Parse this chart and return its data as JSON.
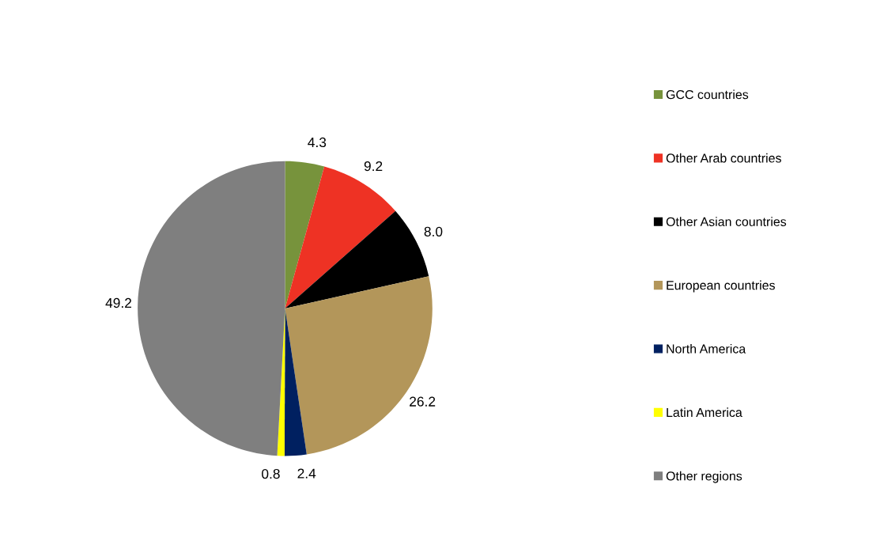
{
  "chart_data": {
    "type": "pie",
    "categories": [
      "GCC countries",
      "Other Arab countries",
      "Other Asian countries",
      "European countries",
      "North America",
      "Latin America",
      "Other regions"
    ],
    "values": [
      4.3,
      9.2,
      8.0,
      26.2,
      2.4,
      0.8,
      49.2
    ],
    "colors": [
      "#77933c",
      "#ee3224",
      "#000000",
      "#b3965a",
      "#002060",
      "#ffff00",
      "#7f7f7f"
    ],
    "value_labels": [
      "4.3",
      "9.2",
      "8.0",
      "26.2",
      "2.4",
      "0.8",
      "49.2"
    ],
    "legend": "right"
  }
}
